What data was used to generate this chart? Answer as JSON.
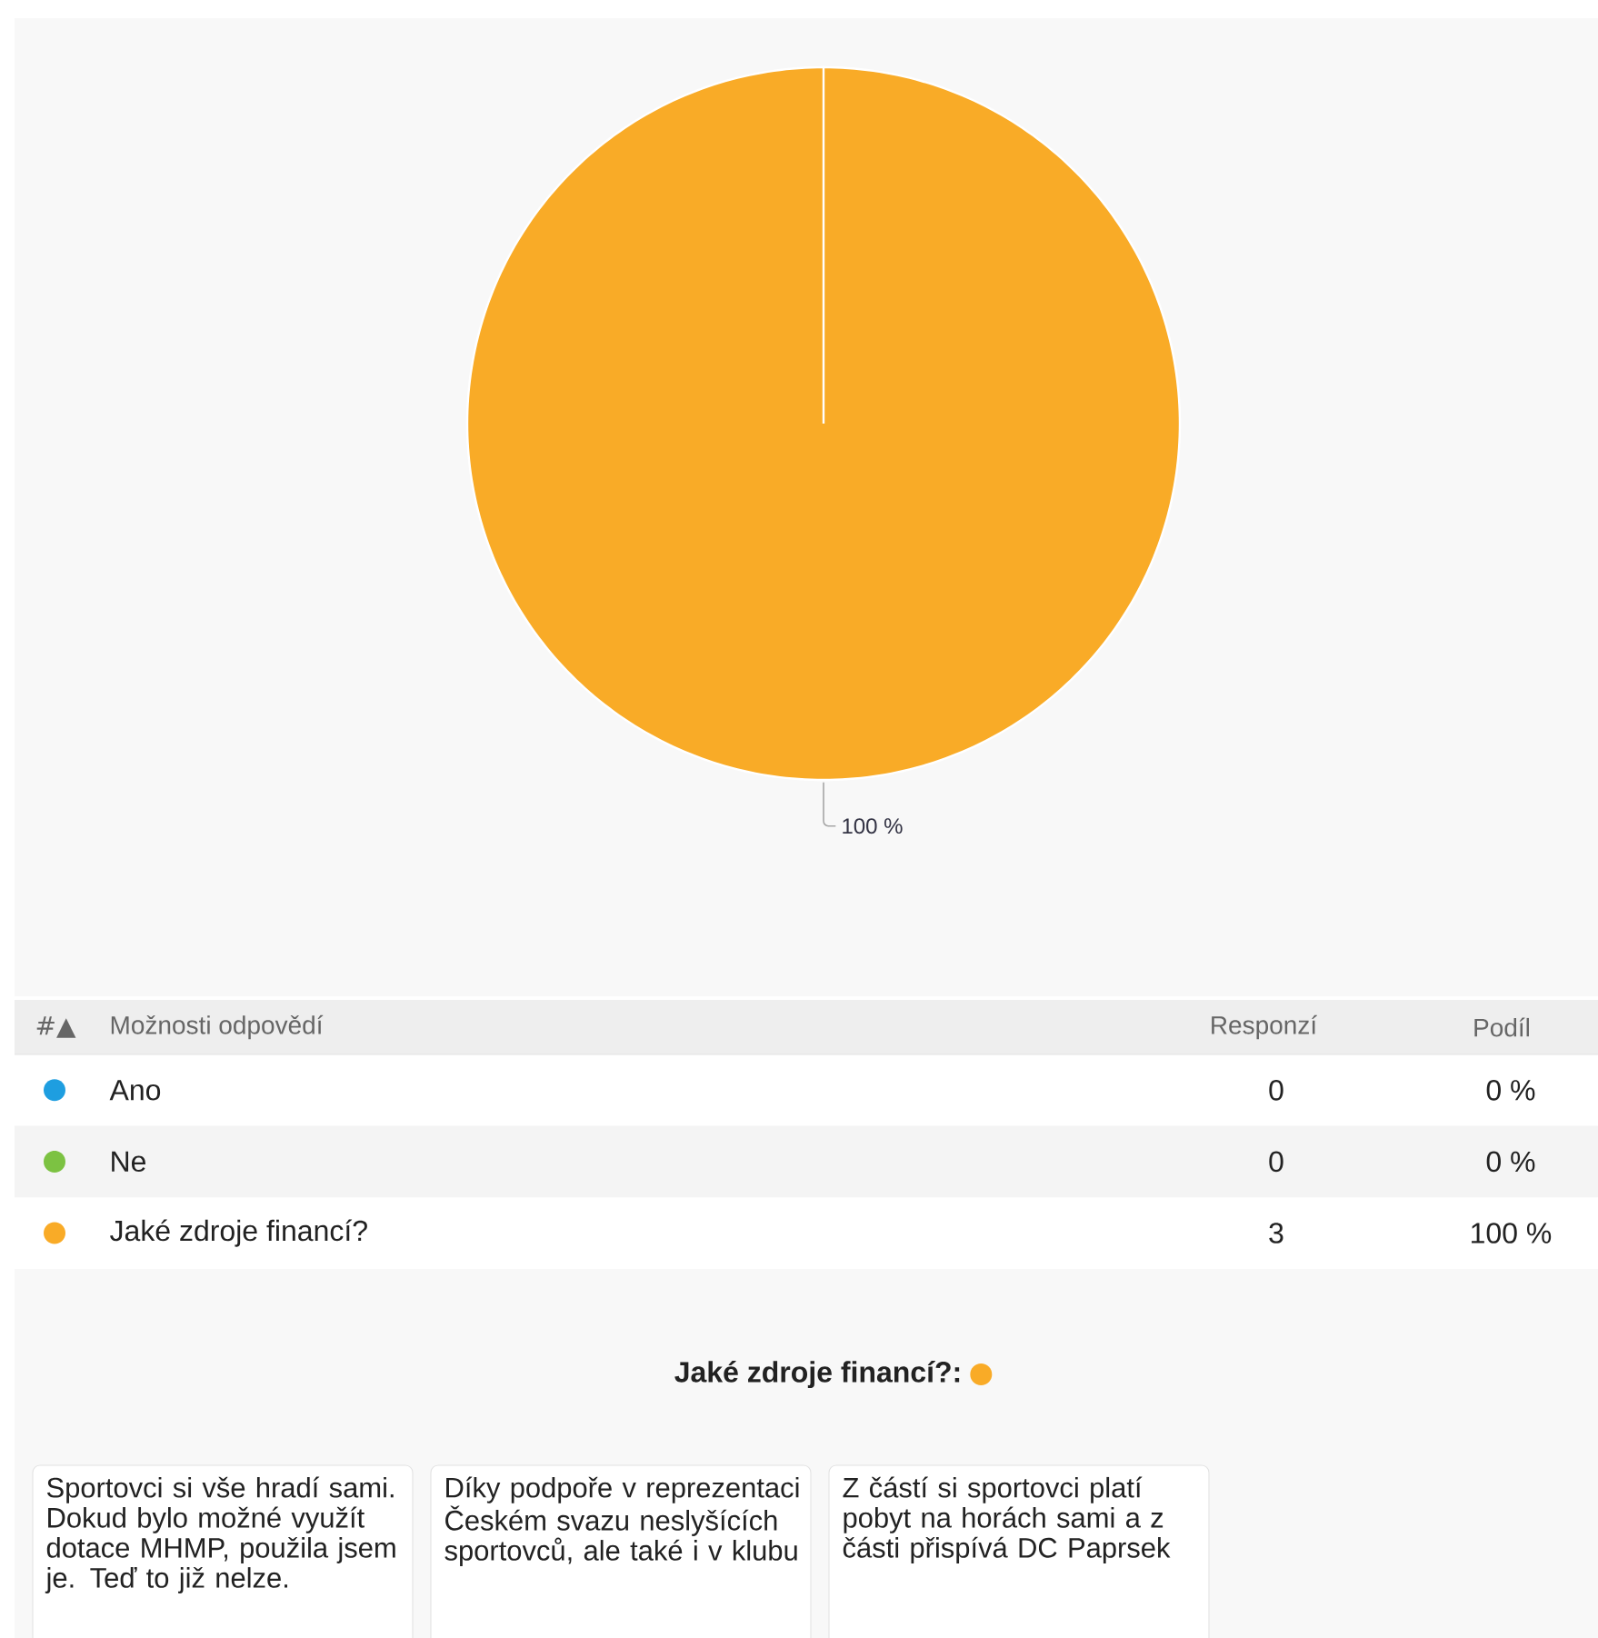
{
  "chart_data": [
    {
      "type": "pie",
      "categories": [
        "Ano",
        "Ne",
        "Jaké zdroje financí?"
      ],
      "values": [
        0,
        0,
        100
      ],
      "value_labels": [
        "0 %",
        "0 %",
        "100 %"
      ],
      "colors": [
        "#1e9ee0",
        "#7cc242",
        "#f9ab27"
      ],
      "legend": "bottom",
      "annotations": [
        "#▲",
        "Možnosti odpovědí",
        "Responzí",
        "Podíl",
        "0",
        "0",
        "3"
      ]
    },
    {
      "type": "other",
      "title": "Jaké zdroje financí?:",
      "annotations": [
        "Sportovci si vše hradí sami. Dokud bylo možné využít dotace MHMP, použila jsem je. Teď to již nelze.",
        "Díky podpoře v reprezentaci Českém svazu neslyšících sportovců, ale také i v klubu",
        "Z částí si sportovci platí pobyt na horách sami a z části přispívá DC Paprsek"
      ]
    }
  ]
}
